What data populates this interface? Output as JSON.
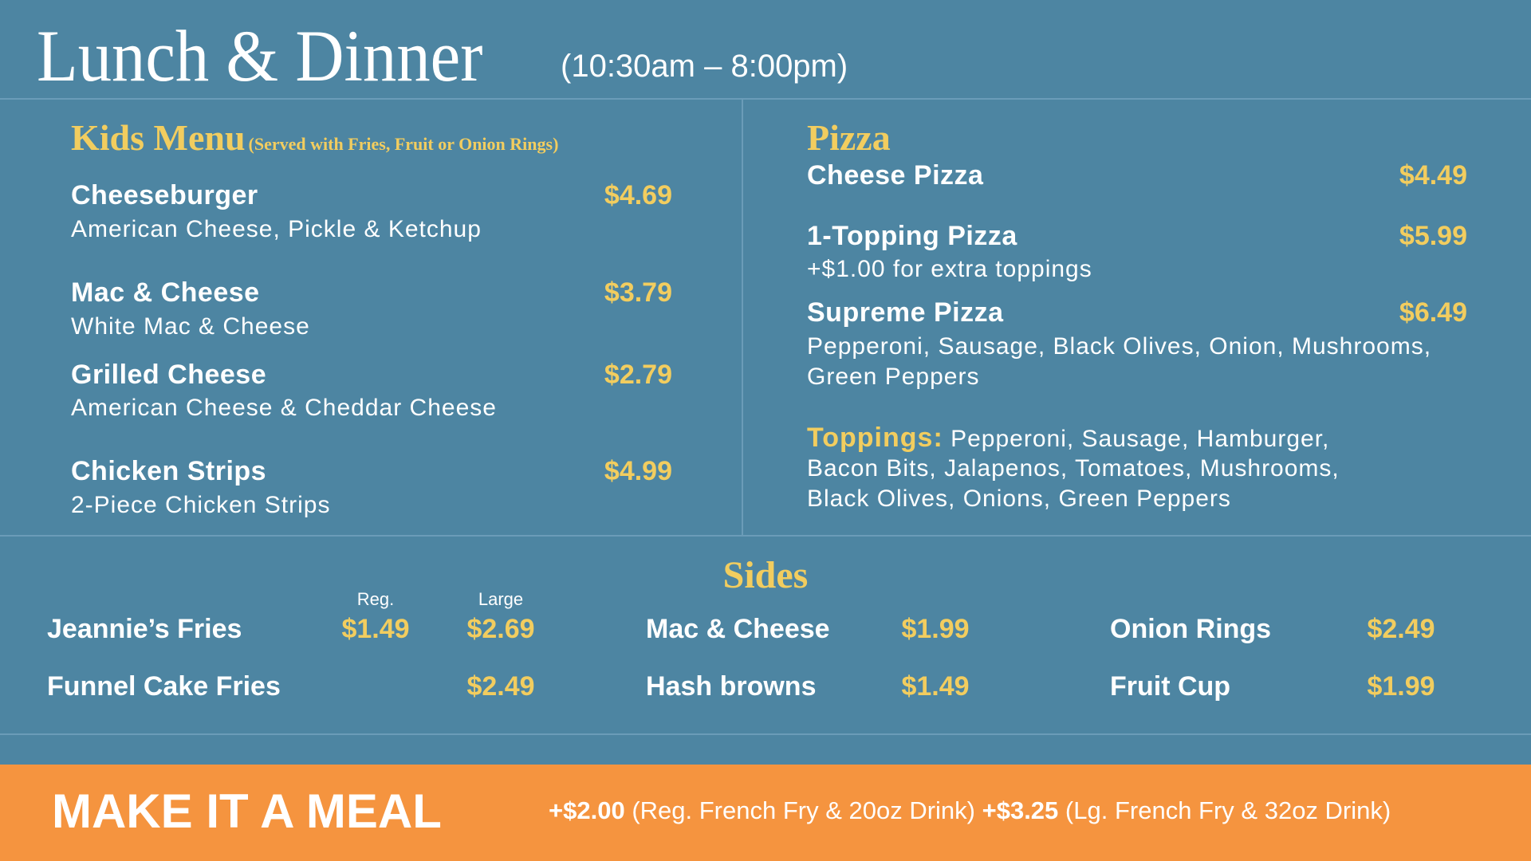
{
  "header": {
    "title": "Lunch & Dinner",
    "hours": "(10:30am – 8:00pm)"
  },
  "kids": {
    "title": "Kids Menu",
    "note": "(Served with Fries, Fruit or Onion Rings)",
    "items": [
      {
        "name": "Cheeseburger",
        "desc": "American Cheese, Pickle & Ketchup",
        "price": "$4.69"
      },
      {
        "name": "Mac & Cheese",
        "desc": "White Mac & Cheese",
        "price": "$3.79"
      },
      {
        "name": "Grilled Cheese",
        "desc": "American Cheese & Cheddar Cheese",
        "price": "$2.79"
      },
      {
        "name": "Chicken Strips",
        "desc": "2-Piece Chicken Strips",
        "price": "$4.99"
      }
    ]
  },
  "pizza": {
    "title": "Pizza",
    "items": [
      {
        "name": "Cheese Pizza",
        "price": "$4.49"
      },
      {
        "name": "1-Topping Pizza",
        "desc": "+$1.00 for extra toppings",
        "price": "$5.99"
      },
      {
        "name": "Supreme Pizza",
        "desc1": "Pepperoni, Sausage, Black Olives, Onion, Mushrooms,",
        "desc2": "Green Peppers",
        "price": "$6.49"
      }
    ],
    "toppings_label": "Toppings:",
    "toppings1": "Pepperoni, Sausage, Hamburger,",
    "toppings2": "Bacon Bits, Jalapenos, Tomatoes, Mushrooms,",
    "toppings3": "Black Olives, Onions, Green Peppers"
  },
  "sides": {
    "title": "Sides",
    "reg_label": "Reg.",
    "large_label": "Large",
    "items": [
      {
        "name": "Jeannie’s Fries",
        "reg": "$1.49",
        "large": "$2.69"
      },
      {
        "name": "Funnel Cake Fries",
        "large": "$2.49"
      },
      {
        "name": "Mac & Cheese",
        "price": "$1.99"
      },
      {
        "name": "Hash browns",
        "price": "$1.49"
      },
      {
        "name": "Onion Rings",
        "price": "$2.49"
      },
      {
        "name": "Fruit Cup",
        "price": "$1.99"
      }
    ]
  },
  "meal": {
    "title": "MAKE IT A MEAL",
    "opt1_price": "+$2.00",
    "opt1_desc": "(Reg. French Fry & 20oz Drink)",
    "opt2_price": "+$3.25",
    "opt2_desc": "(Lg. French Fry & 32oz Drink)"
  },
  "colors": {
    "background": "#4d85a2",
    "accent": "#f2cd5f",
    "banner": "#f5943f"
  }
}
